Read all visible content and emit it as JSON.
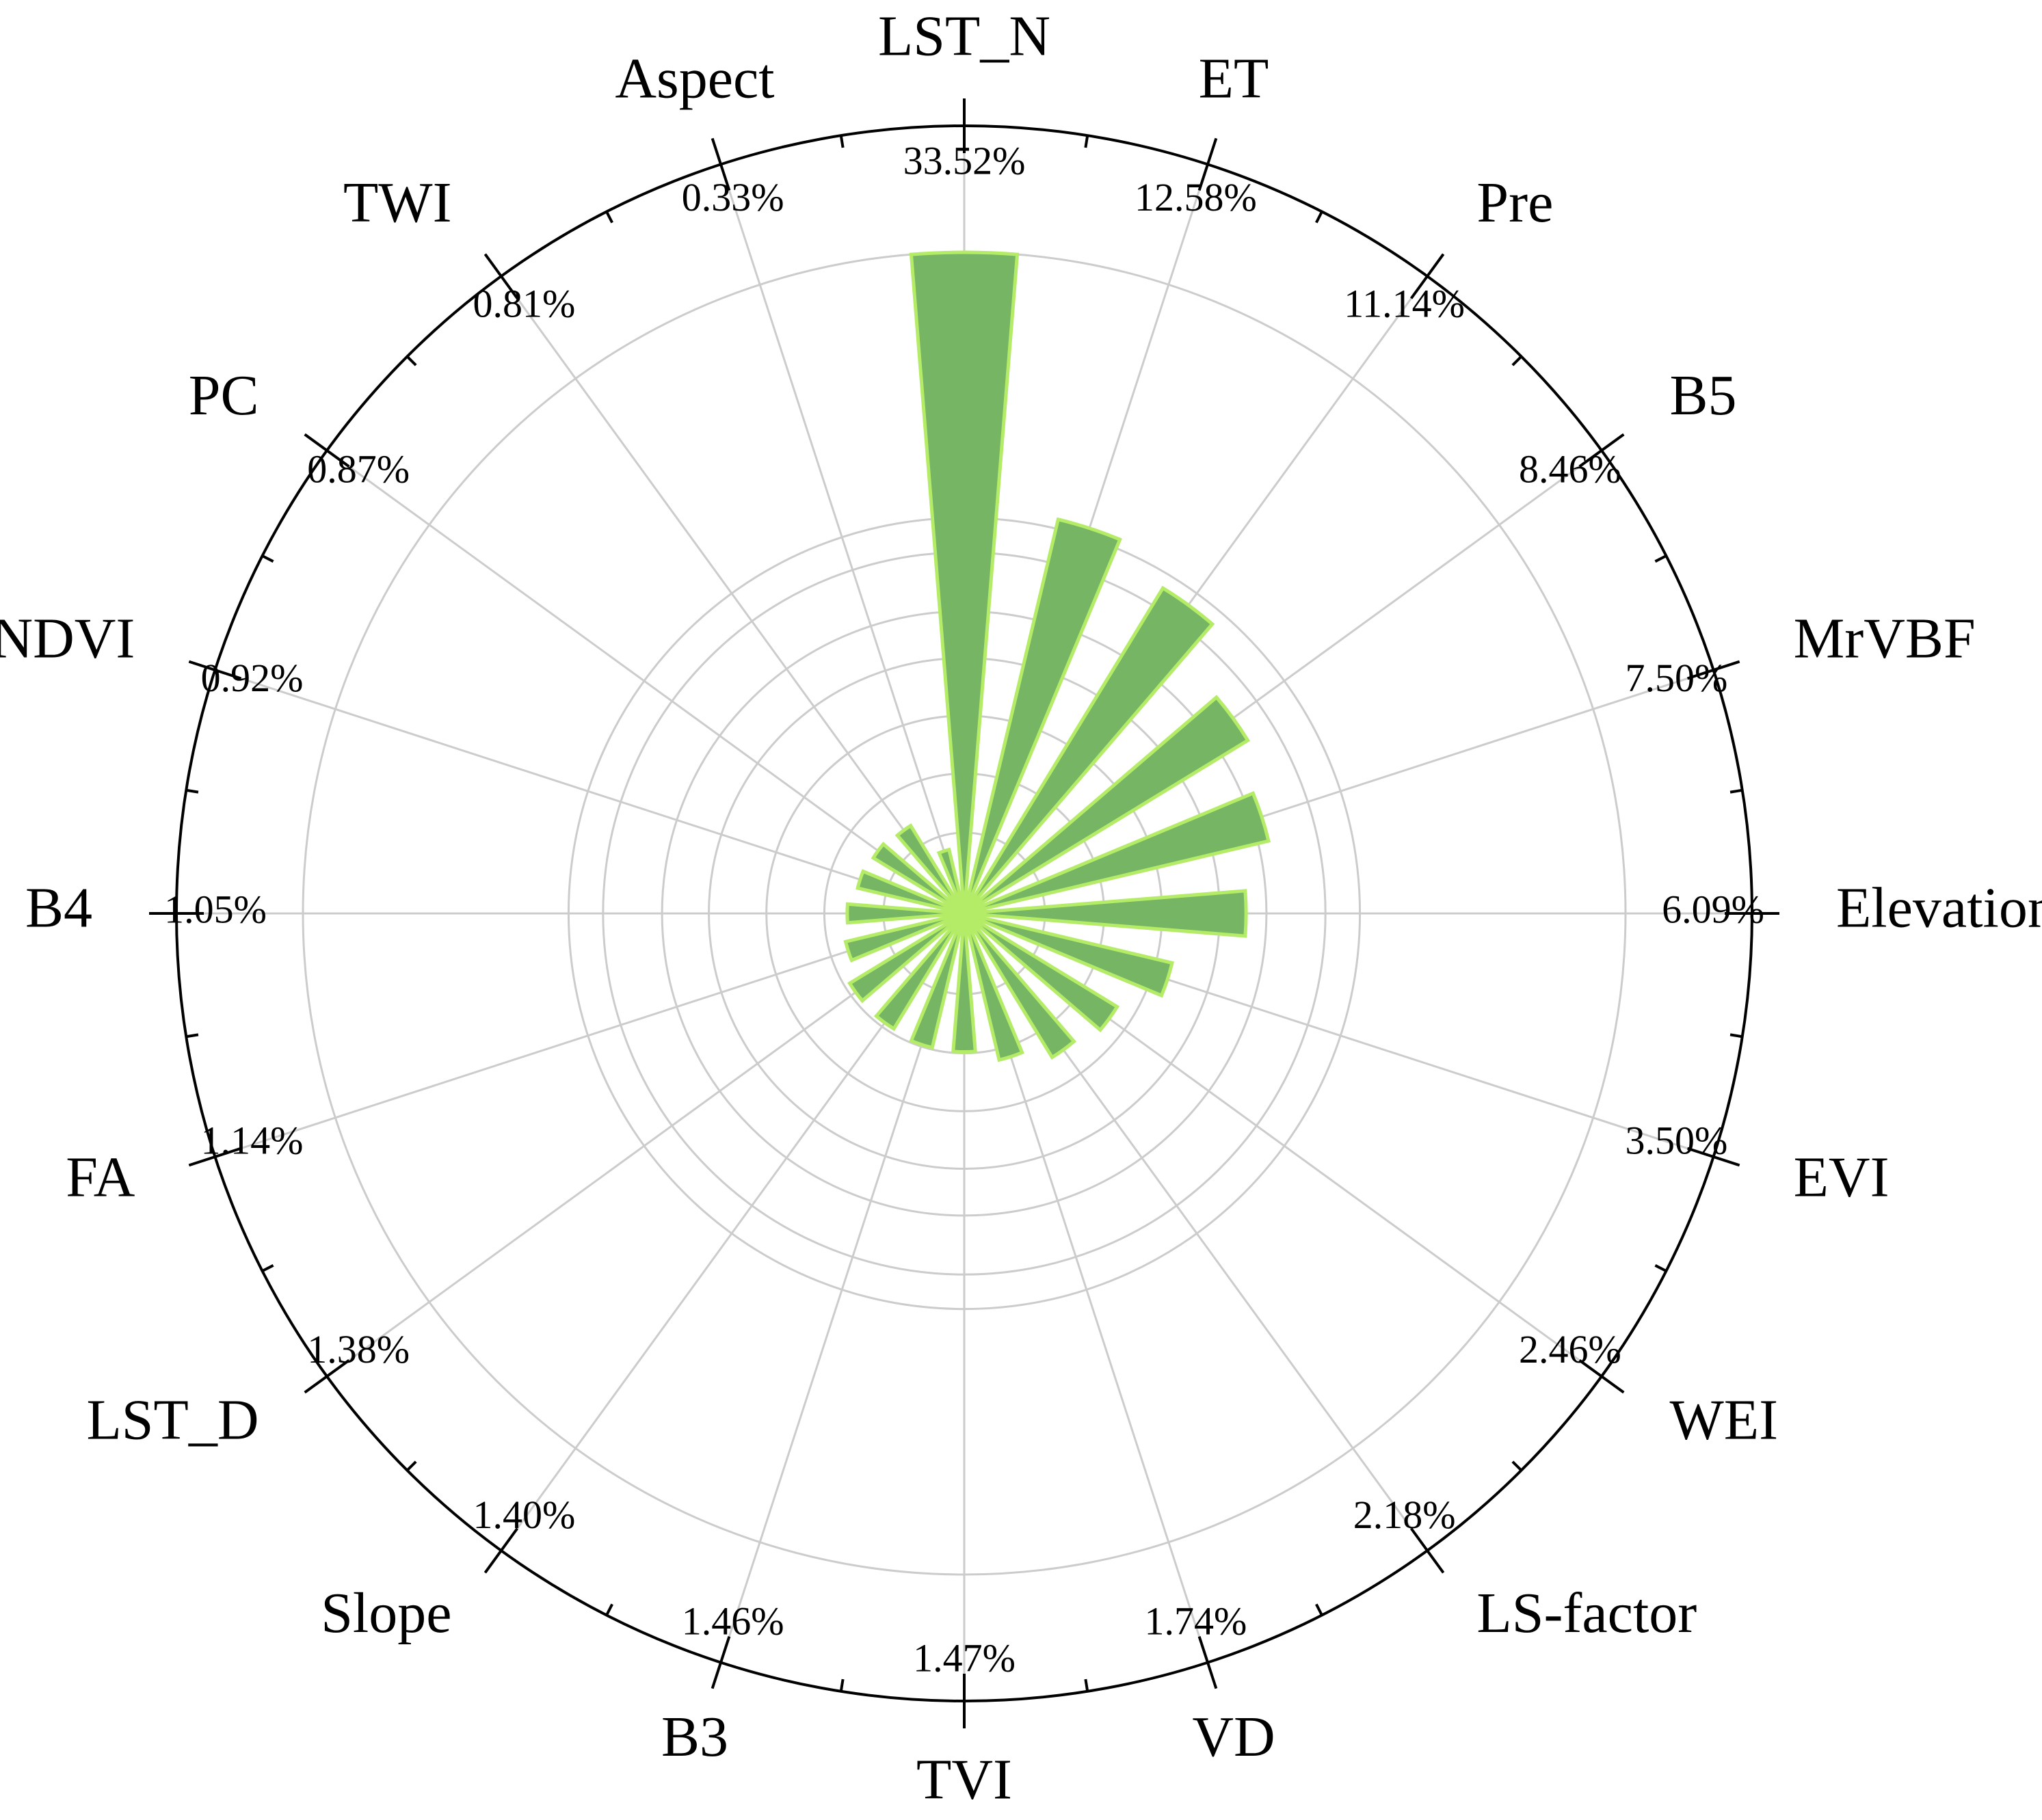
{
  "chart_data": {
    "type": "bar",
    "polar": true,
    "title": "",
    "xlabel": "",
    "ylabel": "",
    "categories": [
      "LST_N",
      "ET",
      "Pre",
      "B5",
      "MrVBF",
      "Elevation",
      "EVI",
      "WEI",
      "LS-factor",
      "VD",
      "TVI",
      "B3",
      "Slope",
      "LST_D",
      "FA",
      "B4",
      "NDVI",
      "PC",
      "TWI",
      "Aspect"
    ],
    "values": [
      33.52,
      12.58,
      11.14,
      8.46,
      7.5,
      6.09,
      3.5,
      2.46,
      2.18,
      1.74,
      1.47,
      1.46,
      1.4,
      1.38,
      1.14,
      1.05,
      0.92,
      0.87,
      0.81,
      0.33
    ],
    "value_labels": [
      "33.52%",
      "12.58%",
      "11.14%",
      "8.46%",
      "7.50%",
      "6.09%",
      "3.50%",
      "2.46%",
      "2.18%",
      "1.74%",
      "1.47%",
      "1.46%",
      "1.40%",
      "1.38%",
      "1.14%",
      "1.05%",
      "0.92%",
      "0.87%",
      "0.81%",
      "0.33%"
    ],
    "radial_scale": "sqrt",
    "r_grid_values": [
      0.5,
      1.5,
      3,
      5,
      7,
      10,
      12,
      33.52
    ],
    "grid": true,
    "colors": {
      "bar_fill": "#76b563",
      "bar_edge": "#b4ec67",
      "grid": "#cccccc",
      "axis": "#000000"
    }
  }
}
